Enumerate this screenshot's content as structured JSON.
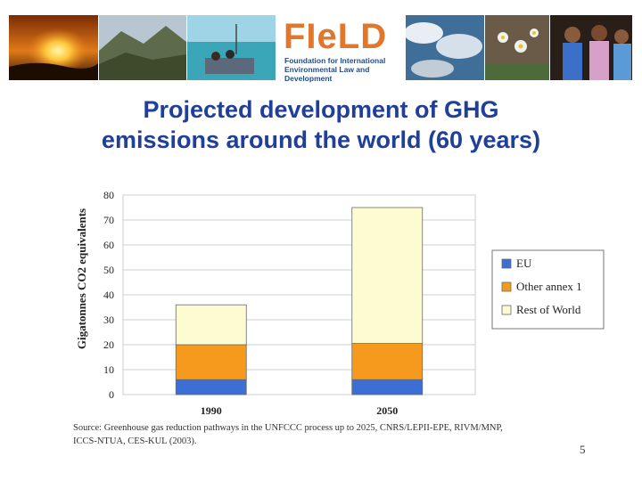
{
  "slide": {
    "title_line1": "Projected development of GHG",
    "title_line2": "emissions around the world (60 years)",
    "page_number": "5"
  },
  "logo": {
    "word": "FIeLD",
    "subtitle_line1": "Foundation for International",
    "subtitle_line2": "Environmental Law and Development"
  },
  "chart_data": {
    "type": "bar",
    "stacked": true,
    "categories": [
      "1990",
      "2050"
    ],
    "series": [
      {
        "name": "EU",
        "color": "#3b6fd6",
        "values": [
          6,
          6
        ]
      },
      {
        "name": "Other annex 1",
        "color": "#f59a1c",
        "values": [
          14,
          14.5
        ]
      },
      {
        "name": "Rest of World",
        "color": "#fdfbd2",
        "values": [
          16,
          54.5
        ]
      }
    ],
    "ylabel": "Gigatonnes CO2 equivalents",
    "ylim": [
      0,
      80
    ],
    "yticks": [
      0,
      10,
      20,
      30,
      40,
      50,
      60,
      70,
      80
    ],
    "grid": true,
    "legend_position": "right",
    "source_line1": "Source: Greenhouse gas reduction pathways in the UNFCCC process up to 2025, CNRS/LEPII-EPE, RIVM/MNP,",
    "source_line2": "ICCS-NTUA, CES-KUL (2003)."
  }
}
